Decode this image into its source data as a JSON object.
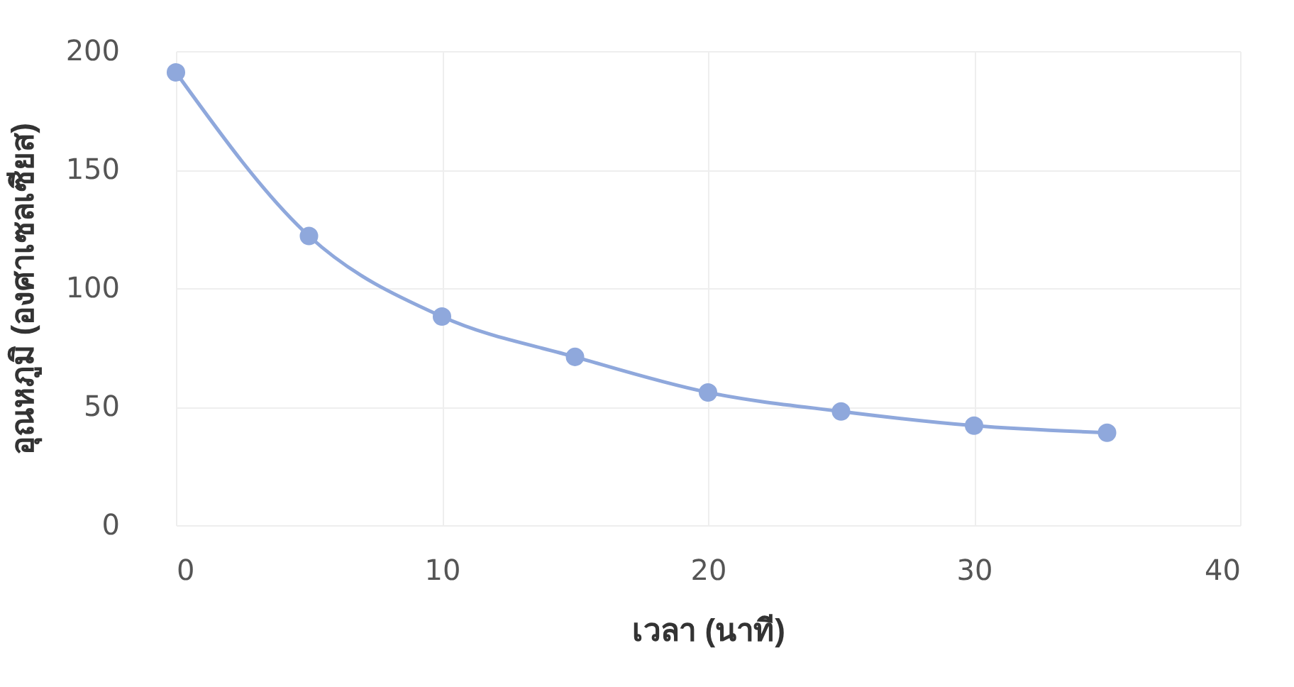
{
  "chart_data": {
    "type": "line",
    "xlabel": "เวลา (นาที)",
    "ylabel": "อุณหภูมิ (องศาเซลเซียส)",
    "x": [
      0,
      5,
      10,
      15,
      20,
      25,
      30,
      35
    ],
    "series": [
      {
        "color": "#8fa8dc",
        "values": [
          191,
          122,
          88,
          71,
          56,
          48,
          42,
          39
        ]
      }
    ],
    "xlim": [
      0,
      40
    ],
    "xticks": [
      0,
      10,
      20,
      30,
      40
    ],
    "ylim": [
      0,
      200
    ],
    "yticks": [
      0,
      50,
      100,
      150,
      200
    ],
    "grid": true,
    "marker": "circle",
    "line_style": "solid",
    "legend": false
  }
}
